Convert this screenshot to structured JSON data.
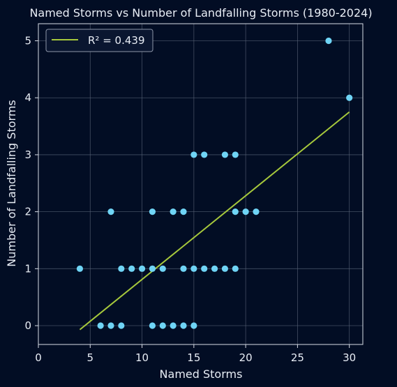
{
  "chart_data": {
    "type": "scatter",
    "title": "Named Storms vs Number of Landfalling Storms (1980-2024)",
    "xlabel": "Named Storms",
    "ylabel": "Number of Landfalling Storms",
    "xlim": [
      0,
      31.3
    ],
    "ylim": [
      -0.33,
      5.3
    ],
    "xticks": [
      0,
      5,
      10,
      15,
      20,
      25,
      30
    ],
    "yticks": [
      0,
      1,
      2,
      3,
      4,
      5
    ],
    "grid": true,
    "legend": {
      "placement": "top-left",
      "entries": [
        "R² = 0.439"
      ]
    },
    "colors": {
      "background": "#020d24",
      "points": "#6fd4f5",
      "trend": "#a6c83c",
      "grid": "#5a6478",
      "axis": "#d8dde6"
    },
    "points": [
      {
        "x": 4,
        "y": 1
      },
      {
        "x": 6,
        "y": 0
      },
      {
        "x": 7,
        "y": 0
      },
      {
        "x": 8,
        "y": 0
      },
      {
        "x": 7,
        "y": 2
      },
      {
        "x": 8,
        "y": 1
      },
      {
        "x": 9,
        "y": 1
      },
      {
        "x": 10,
        "y": 1
      },
      {
        "x": 11,
        "y": 1
      },
      {
        "x": 12,
        "y": 1
      },
      {
        "x": 11,
        "y": 0
      },
      {
        "x": 12,
        "y": 0
      },
      {
        "x": 13,
        "y": 0
      },
      {
        "x": 14,
        "y": 0
      },
      {
        "x": 15,
        "y": 0
      },
      {
        "x": 11,
        "y": 2
      },
      {
        "x": 13,
        "y": 2
      },
      {
        "x": 14,
        "y": 2
      },
      {
        "x": 14,
        "y": 1
      },
      {
        "x": 15,
        "y": 1
      },
      {
        "x": 16,
        "y": 1
      },
      {
        "x": 17,
        "y": 1
      },
      {
        "x": 18,
        "y": 1
      },
      {
        "x": 19,
        "y": 1
      },
      {
        "x": 15,
        "y": 3
      },
      {
        "x": 16,
        "y": 3
      },
      {
        "x": 18,
        "y": 3
      },
      {
        "x": 19,
        "y": 3
      },
      {
        "x": 19,
        "y": 2
      },
      {
        "x": 20,
        "y": 2
      },
      {
        "x": 21,
        "y": 2
      },
      {
        "x": 28,
        "y": 5
      },
      {
        "x": 30,
        "y": 4
      }
    ],
    "trendline": {
      "x": [
        4,
        30
      ],
      "y": [
        -0.07,
        3.75
      ]
    }
  }
}
